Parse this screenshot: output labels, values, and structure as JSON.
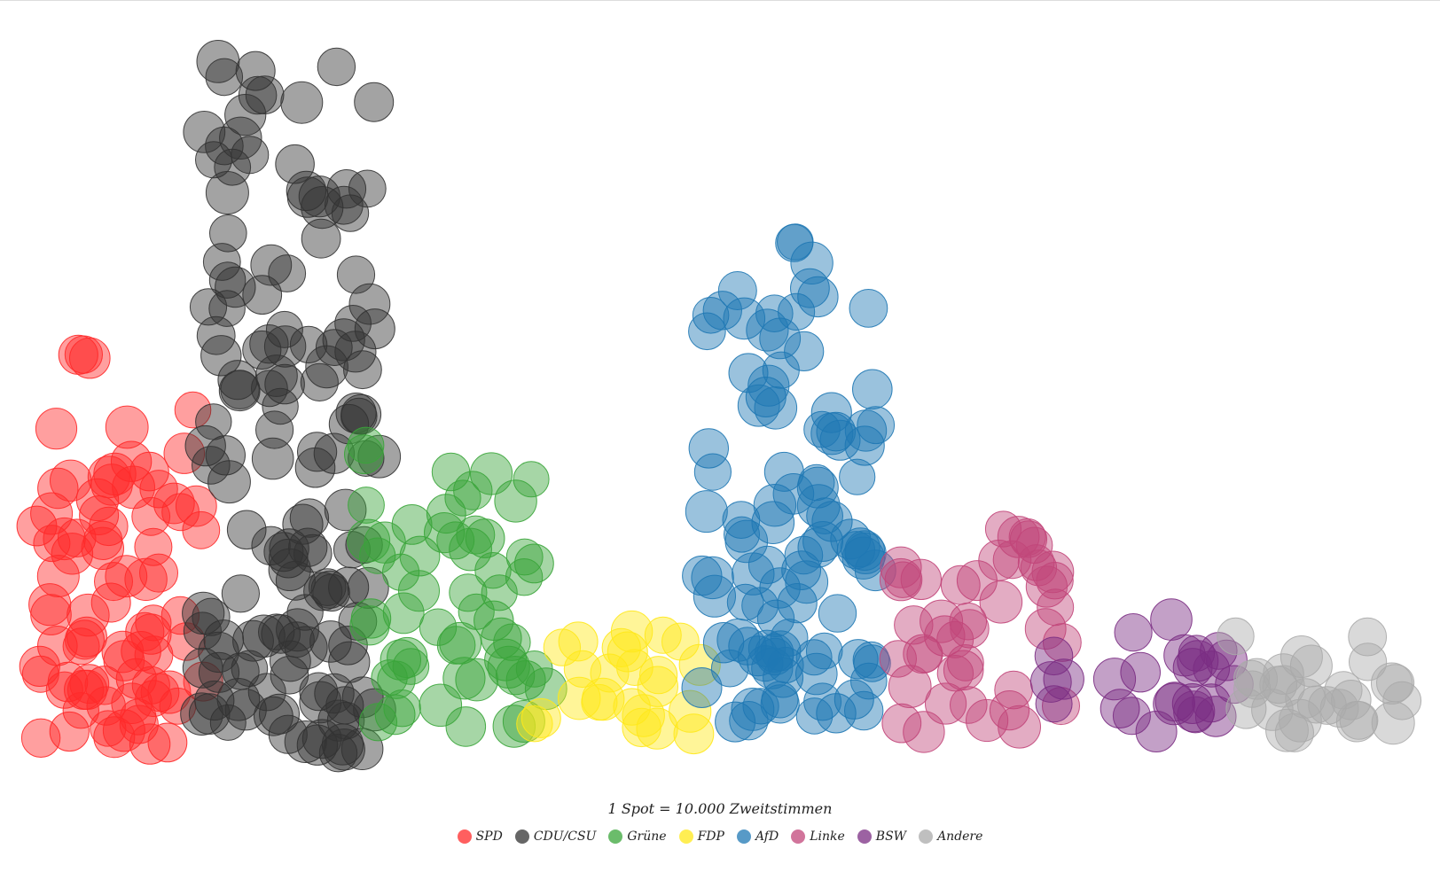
{
  "chart_data": {
    "type": "scatter",
    "note": "1 Spot = 10.000 Zweitstimmen",
    "title": "",
    "legend_position": "bottom-center",
    "series": [
      {
        "name": "SPD",
        "color": "#ff2a2a",
        "spots": 82
      },
      {
        "name": "CDU/CSU",
        "color": "#333333",
        "spots": 144
      },
      {
        "name": "Grüne",
        "color": "#3aa53a",
        "spots": 58
      },
      {
        "name": "FDP",
        "color": "#ffe81a",
        "spots": 24
      },
      {
        "name": "AfD",
        "color": "#1f78b4",
        "spots": 103
      },
      {
        "name": "Linke",
        "color": "#c2467a",
        "spots": 44
      },
      {
        "name": "BSW",
        "color": "#7b2d83",
        "spots": 26
      },
      {
        "name": "Andere",
        "color": "#aaaaaa",
        "spots": 28
      }
    ]
  }
}
